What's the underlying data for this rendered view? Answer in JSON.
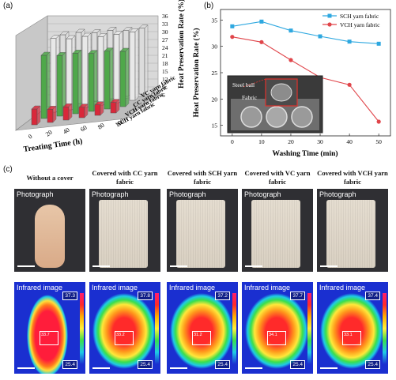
{
  "panel_a": {
    "label": "(a)",
    "chart_data": {
      "type": "bar",
      "categories": [
        "0",
        "20",
        "40",
        "60",
        "80",
        "100"
      ],
      "series": [
        {
          "name": "SCH yarn fabric",
          "values": [
            33,
            33,
            32,
            32,
            31,
            31
          ]
        },
        {
          "name": "VCH yarn fabric",
          "values": [
            34,
            33,
            33,
            32,
            32,
            32
          ]
        },
        {
          "name": "CC yarn fabric",
          "values": [
            30,
            29,
            29,
            28,
            28,
            27
          ]
        },
        {
          "name": "VC yarn fabric",
          "values": [
            12,
            11,
            11,
            10,
            10,
            10
          ]
        }
      ],
      "xlabel": "Treating Time (h)",
      "ylabel": "Heat Preservation Rate (%)",
      "yticks": [
        "6",
        "9",
        "12",
        "15",
        "18",
        "21",
        "24",
        "27",
        "30",
        "33",
        "36"
      ],
      "ylim": [
        6,
        36
      ],
      "colors": {
        "SCH yarn fabric": "#dcdcdc",
        "VCH yarn fabric": "#e8e8e8",
        "CC yarn fabric": "#4fa84a",
        "VC yarn fabric": "#d9283a"
      }
    }
  },
  "panel_b": {
    "label": "(b)",
    "chart_data": {
      "type": "line",
      "x": [
        0,
        10,
        20,
        30,
        40,
        50
      ],
      "series": [
        {
          "name": "SCH yarn fabric",
          "values": [
            33.8,
            34.7,
            33.0,
            31.9,
            30.9,
            30.5
          ],
          "color": "#2ea8e0"
        },
        {
          "name": "VCH yarn fabric",
          "values": [
            31.8,
            30.8,
            27.4,
            24.1,
            22.7,
            15.7
          ],
          "color": "#e0454a"
        }
      ],
      "xlabel": "Washing Time (min)",
      "ylabel": "Heat Preservation Rate (%)",
      "xticks": [
        "0",
        "10",
        "20",
        "30",
        "40",
        "50"
      ],
      "yticks": [
        "15",
        "20",
        "25",
        "30",
        "35"
      ],
      "xlim": [
        -4,
        54
      ],
      "ylim": [
        13,
        37
      ],
      "legend": "top-right"
    },
    "inset": {
      "steel_ball": "Steel ball",
      "fabric": "Fabric"
    }
  },
  "panel_c": {
    "label": "(c)",
    "columns": [
      {
        "title": "Without a cover",
        "photo": "Photograph",
        "infrared": "Infrared image",
        "t_max": "37.3",
        "t_min": "25.4",
        "center": "33.7"
      },
      {
        "title": "Covered with CC yarn fabric",
        "photo": "Photograph",
        "infrared": "Infrared image",
        "t_max": "37.8",
        "t_min": "25.4",
        "center": "33.2"
      },
      {
        "title": "Covered with SCH yarn fabric",
        "photo": "Photograph",
        "infrared": "Infrared image",
        "t_max": "37.2",
        "t_min": "25.4",
        "center": "31.2"
      },
      {
        "title": "Covered with VC yarn fabric",
        "photo": "Photograph",
        "infrared": "Infrared image",
        "t_max": "37.7",
        "t_min": "25.4",
        "center": "34.1"
      },
      {
        "title": "Covered with VCH yarn fabric",
        "photo": "Photograph",
        "infrared": "Infrared image",
        "t_max": "37.4",
        "t_min": "25.4",
        "center": "33.1"
      }
    ]
  }
}
